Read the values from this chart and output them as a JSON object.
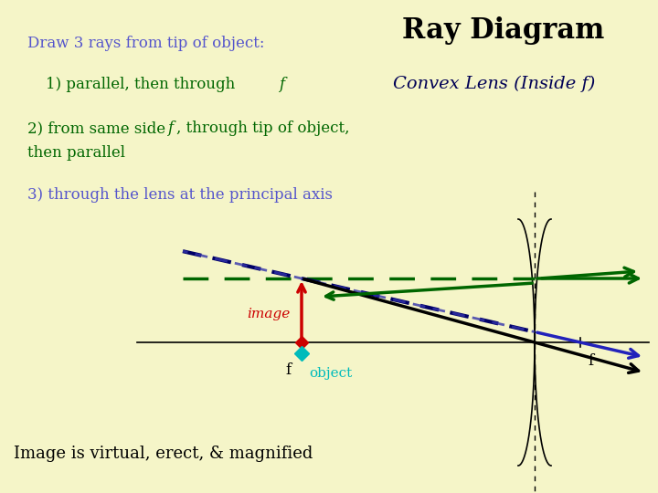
{
  "bg_color": "#f5f5c8",
  "title": "Ray Diagram",
  "subtitle": "Convex Lens (Inside f)",
  "text1": "Draw 3 rays from tip of object:",
  "text2": "1) parallel, then through f",
  "text3": "2) from same side f, through tip of object,\nthen parallel",
  "text4": "3) through the lens at the principal axis",
  "text5": "Image is virtual, erect, & magnified",
  "text1_color": "#5555cc",
  "text2_color": "#006600",
  "text3_color": "#006600",
  "text4_color": "#5555cc",
  "text5_color": "#000000",
  "title_color": "#000000",
  "subtitle_color": "#000055",
  "image_label_color": "#cc0000",
  "object_label_color": "#00bbbb",
  "f_label_color": "#000000",
  "ray1_color": "#006600",
  "ray1_dashed_color": "#008800",
  "ray2_color": "#000088",
  "ray3_color": "#000000",
  "red_arrow_color": "#cc0000",
  "teal_diamond_color": "#00bbbb"
}
